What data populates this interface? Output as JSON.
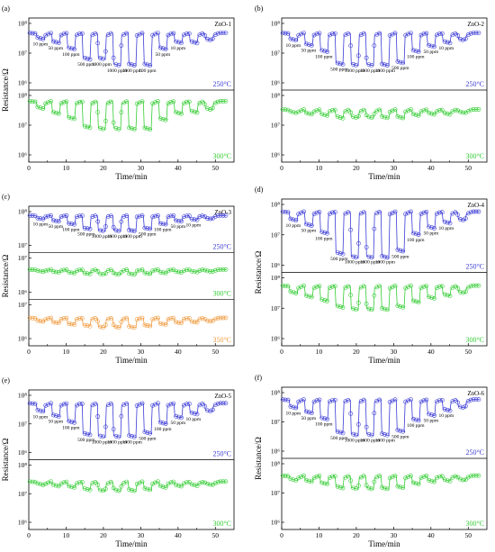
{
  "chart_data": [
    {
      "panel": "(a)",
      "sample": "ZnO-1",
      "ylabel": "Resistance/Ω",
      "xlabel": "Time/min",
      "xticks": [
        "0",
        "10",
        "20",
        "30",
        "40",
        "50"
      ],
      "subplots": [
        {
          "temp": "250°C",
          "color": "#3b3bd6",
          "yticks": [
            "10⁸",
            "10⁷",
            "10⁶"
          ],
          "base": 0.18,
          "dips": [
            0.1,
            0.16,
            0.26,
            0.42,
            0.42,
            0.52,
            0.52,
            0.52,
            0.26,
            0.16,
            0.16,
            0.12
          ]
        },
        {
          "temp": "300°C",
          "color": "#33cc33",
          "yticks": [
            "10⁸",
            "10⁷",
            "10⁶"
          ],
          "base": 0.12,
          "dips": [
            0.12,
            0.2,
            0.28,
            0.42,
            0.45,
            0.45,
            0.45,
            0.45,
            0.3,
            0.2,
            0.18,
            0.14
          ]
        }
      ],
      "concentrations": [
        "10 ppm",
        "50 ppm",
        "100 ppm",
        "500 ppm",
        "1000 ppm",
        "1000 ppm",
        "1000 ppm",
        "100 ppm",
        "50 ppm",
        "10 ppm"
      ]
    },
    {
      "panel": "(b)",
      "sample": "ZnO-2",
      "ylabel": "",
      "xlabel": "Time/min",
      "xticks": [
        "0",
        "10",
        "20",
        "30",
        "40",
        "50"
      ],
      "subplots": [
        {
          "temp": "250°C",
          "color": "#3b3bd6",
          "yticks": [
            "10⁸",
            "10⁷",
            "10⁶"
          ],
          "base": 0.18,
          "dips": [
            0.12,
            0.2,
            0.3,
            0.5,
            0.52,
            0.52,
            0.52,
            0.48,
            0.3,
            0.22,
            0.16,
            0.12
          ]
        },
        {
          "temp": "300°C",
          "color": "#33cc33",
          "yticks": [
            "10⁸",
            "10⁷",
            "10⁶"
          ],
          "base": 0.25,
          "dips": [
            0.06,
            0.08,
            0.1,
            0.14,
            0.14,
            0.14,
            0.14,
            0.14,
            0.1,
            0.08,
            0.08,
            0.06
          ]
        }
      ],
      "concentrations": [
        "10 ppm",
        "50 ppm",
        "100 ppm",
        "500 ppm",
        "1000 ppm",
        "1000 ppm",
        "1000 ppm",
        "500 ppm",
        "100 ppm",
        "50 ppm",
        "10 ppm"
      ]
    },
    {
      "panel": "(c)",
      "sample": "ZnO-3",
      "ylabel": "Resistance/Ω",
      "xlabel": "Time/min",
      "xticks": [
        "0",
        "10",
        "20",
        "30",
        "40",
        "50"
      ],
      "subplots": [
        {
          "temp": "250°C",
          "color": "#3b3bd6",
          "yticks": [
            "10⁸",
            "10⁷"
          ],
          "base": 0.15,
          "dips": [
            0.1,
            0.16,
            0.24,
            0.36,
            0.42,
            0.42,
            0.42,
            0.36,
            0.24,
            0.16,
            0.12,
            0.1
          ]
        },
        {
          "temp": "300°C",
          "color": "#33cc33",
          "yticks": [
            "10⁷",
            "10⁶"
          ],
          "base": 0.35,
          "dips": [
            0.06,
            0.08,
            0.1,
            0.12,
            0.14,
            0.14,
            0.14,
            0.12,
            0.1,
            0.08,
            0.07,
            0.06
          ]
        },
        {
          "temp": "350°C",
          "color": "#f09a3e",
          "yticks": [
            "10⁷",
            "10⁶"
          ],
          "base": 0.4,
          "dips": [
            0.1,
            0.14,
            0.18,
            0.22,
            0.26,
            0.26,
            0.26,
            0.22,
            0.18,
            0.14,
            0.12,
            0.1
          ]
        }
      ],
      "concentrations": [
        "10 ppm",
        "50 ppm",
        "100 ppm",
        "500 ppm",
        "1000 ppm",
        "1000 ppm",
        "1000 ppm",
        "500 ppm",
        "100 ppm",
        "50 ppm",
        "10 ppm"
      ]
    },
    {
      "panel": "(d)",
      "sample": "ZnO-4",
      "ylabel": "Resistance/Ω",
      "xlabel": "Time/min",
      "xticks": [
        "0",
        "10",
        "20",
        "30",
        "40",
        "50"
      ],
      "subplots": [
        {
          "temp": "250°C",
          "color": "#3b3bd6",
          "yticks": [
            "10⁸",
            "10⁷",
            "10⁶"
          ],
          "base": 0.14,
          "dips": [
            0.14,
            0.22,
            0.34,
            0.66,
            0.72,
            0.72,
            0.72,
            0.62,
            0.36,
            0.26,
            0.18,
            0.14
          ]
        },
        {
          "temp": "300°C",
          "color": "#33cc33",
          "yticks": [
            "10⁸",
            "10⁷",
            "10⁶"
          ],
          "base": 0.15,
          "dips": [
            0.12,
            0.18,
            0.24,
            0.34,
            0.38,
            0.38,
            0.38,
            0.34,
            0.26,
            0.2,
            0.16,
            0.12
          ]
        }
      ],
      "concentrations": [
        "10 ppm",
        "50 ppm",
        "100 ppm",
        "500 ppm",
        "1000 ppm",
        "1000 ppm",
        "1000 ppm",
        "500 ppm",
        "100 ppm",
        "50 ppm",
        "10 ppm"
      ]
    },
    {
      "panel": "(e)",
      "sample": "ZnO-5",
      "ylabel": "Resistance/Ω",
      "xlabel": "Time/min",
      "xticks": [
        "0",
        "10",
        "20",
        "30",
        "40",
        "50"
      ],
      "subplots": [
        {
          "temp": "250°C",
          "color": "#3b3bd6",
          "yticks": [
            "10⁸",
            "10⁷",
            "10⁶"
          ],
          "base": 0.16,
          "dips": [
            0.14,
            0.22,
            0.32,
            0.52,
            0.56,
            0.56,
            0.56,
            0.5,
            0.34,
            0.24,
            0.18,
            0.14
          ]
        },
        {
          "temp": "300°C",
          "color": "#33cc33",
          "yticks": [
            "10⁸",
            "10⁷",
            "10⁶"
          ],
          "base": 0.3,
          "dips": [
            0.06,
            0.08,
            0.1,
            0.14,
            0.16,
            0.16,
            0.16,
            0.14,
            0.1,
            0.08,
            0.07,
            0.06
          ]
        }
      ],
      "concentrations": [
        "10 ppm",
        "50 ppm",
        "100 ppm",
        "500 ppm",
        "1000 ppm",
        "1000 ppm",
        "1000 ppm",
        "500 ppm",
        "100 ppm",
        "50 ppm",
        "10 ppm"
      ]
    },
    {
      "panel": "(f)",
      "sample": "ZnO-6",
      "ylabel": "Resistance/Ω",
      "xlabel": "Time/min",
      "xticks": [
        "0",
        "10",
        "20",
        "30",
        "40",
        "50"
      ],
      "subplots": [
        {
          "temp": "250°C",
          "color": "#3b3bd6",
          "yticks": [
            "10⁸",
            "10⁷",
            "10⁶"
          ],
          "base": 0.14,
          "dips": [
            0.14,
            0.22,
            0.32,
            0.54,
            0.58,
            0.58,
            0.58,
            0.52,
            0.34,
            0.26,
            0.18,
            0.14
          ]
        },
        {
          "temp": "300°C",
          "color": "#33cc33",
          "yticks": [
            "10⁸",
            "10⁷",
            "10⁶"
          ],
          "base": 0.22,
          "dips": [
            0.08,
            0.1,
            0.14,
            0.2,
            0.22,
            0.22,
            0.22,
            0.2,
            0.14,
            0.1,
            0.09,
            0.08
          ]
        }
      ],
      "concentrations": [
        "10 ppm",
        "50 ppm",
        "100 ppm",
        "500 ppm",
        "1000 ppm",
        "1000 ppm",
        "1000 ppm",
        "500 ppm",
        "100 ppm",
        "50 ppm",
        "10 ppm"
      ]
    }
  ]
}
